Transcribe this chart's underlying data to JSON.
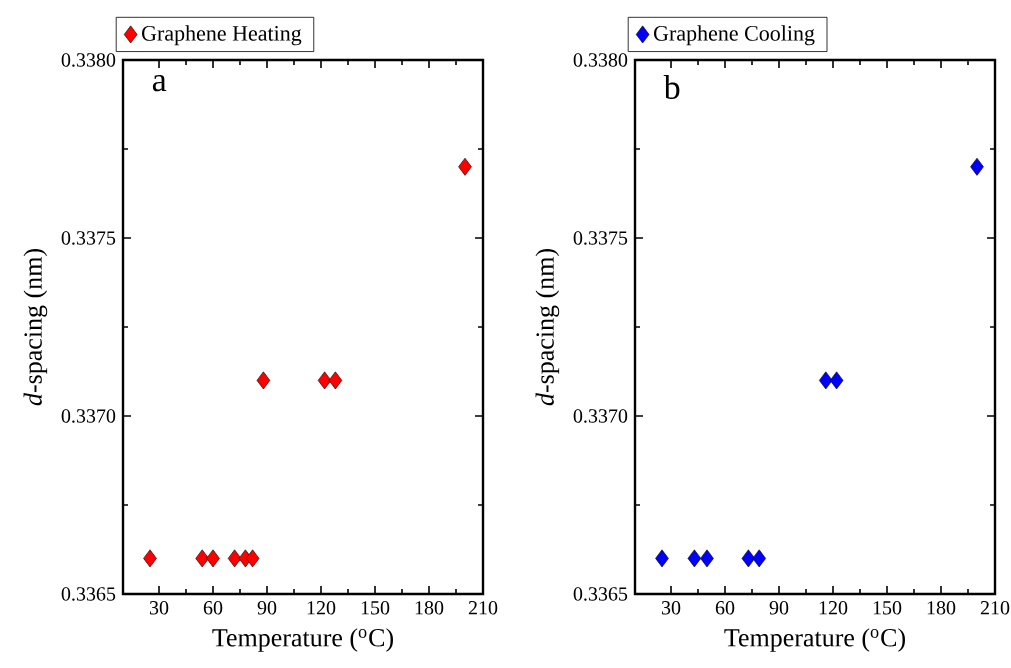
{
  "chart_data": [
    {
      "type": "scatter",
      "xlabel": "Temperature ($^{o}$C)",
      "ylabel": "*d*-spacing (nm)",
      "annotations": [
        "a"
      ],
      "marker": "diamond",
      "legend": "top left",
      "series": [
        {
          "name": "Graphene Heating",
          "color": "#ff0000",
          "x": [
            25,
            54,
            60,
            72,
            78,
            82,
            88,
            122,
            128,
            200
          ],
          "values": [
            0.3366,
            0.3366,
            0.3366,
            0.3366,
            0.3366,
            0.3366,
            0.3371,
            0.3371,
            0.3371,
            0.3377
          ]
        }
      ],
      "xlim": [
        10,
        210
      ],
      "xticks": [
        30,
        60,
        90,
        120,
        150,
        180,
        210
      ],
      "ylim": [
        0.3365,
        0.338
      ],
      "yticks": [
        {
          "value": 0.3365,
          "label": "0.3365"
        },
        {
          "value": 0.337,
          "label": "0.3370"
        },
        {
          "value": 0.3375,
          "label": "0.3375"
        },
        {
          "value": 0.338,
          "label": "0.3380"
        }
      ]
    },
    {
      "type": "scatter",
      "xlabel": "Temperature ($^{o}$C)",
      "ylabel": "*d*-spacing (nm)",
      "annotations": [
        "b"
      ],
      "marker": "diamond",
      "legend": "top left",
      "series": [
        {
          "name": "Graphene Cooling",
          "color": "#0000ff",
          "x": [
            25,
            43,
            50,
            73,
            79,
            116,
            122,
            200
          ],
          "values": [
            0.3366,
            0.3366,
            0.3366,
            0.3366,
            0.3366,
            0.3371,
            0.3371,
            0.3377
          ]
        }
      ],
      "xlim": [
        10,
        210
      ],
      "xticks": [
        30,
        60,
        90,
        120,
        150,
        180,
        210
      ],
      "ylim": [
        0.3365,
        0.338
      ],
      "yticks": [
        {
          "value": 0.3365,
          "label": "0.3365"
        },
        {
          "value": 0.337,
          "label": "0.3370"
        },
        {
          "value": 0.3375,
          "label": "0.3375"
        },
        {
          "value": 0.338,
          "label": "0.3380"
        }
      ]
    }
  ]
}
